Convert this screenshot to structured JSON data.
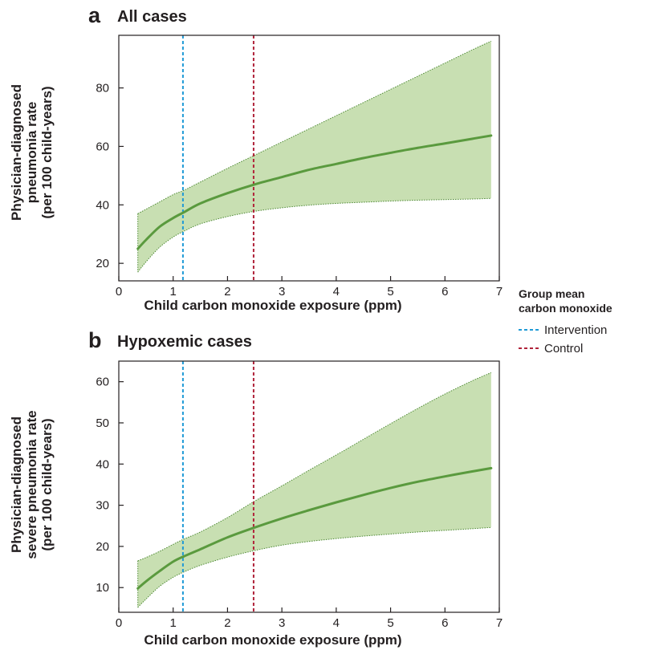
{
  "legend": {
    "title_line1": "Group mean",
    "title_line2": "carbon monoxide",
    "items": [
      {
        "label": "Intervention",
        "color": "#1f9ad6"
      },
      {
        "label": "Control",
        "color": "#b0233a"
      }
    ]
  },
  "colors": {
    "band": "#c8dfb2",
    "line": "#5a9a3e",
    "band_edge": "#4f8a35",
    "axis": "#231f20"
  },
  "chart_data": [
    {
      "type": "line",
      "panel_letter": "a",
      "title": "All cases",
      "xlabel": "Child carbon monoxide exposure (ppm)",
      "ylabel_lines": [
        "Physician-diagnosed",
        "pneumonia rate",
        "(per 100 child-years)"
      ],
      "xlim": [
        0,
        7
      ],
      "ylim": [
        14,
        98
      ],
      "x_ticks": [
        0,
        1,
        2,
        3,
        4,
        5,
        6,
        7
      ],
      "y_ticks": [
        20,
        40,
        60,
        80
      ],
      "x": [
        0.35,
        0.5,
        0.75,
        1.0,
        1.2,
        1.5,
        2.0,
        2.5,
        3.0,
        3.5,
        4.0,
        4.5,
        5.0,
        5.5,
        6.0,
        6.5,
        6.85
      ],
      "series": [
        {
          "role": "estimate",
          "values": [
            25,
            28,
            32.5,
            35.5,
            37.5,
            40.5,
            44,
            47,
            49.5,
            52,
            54,
            56,
            57.8,
            59.5,
            61,
            62.6,
            63.7
          ]
        },
        {
          "role": "upper",
          "values": [
            37,
            38.5,
            41,
            43.5,
            45,
            47.8,
            52.5,
            57,
            61.5,
            66,
            70.5,
            75,
            79.5,
            84,
            88.5,
            93,
            96
          ]
        },
        {
          "role": "lower",
          "values": [
            17,
            20.5,
            25.5,
            29,
            31,
            33.5,
            36,
            37.8,
            39,
            39.9,
            40.5,
            40.9,
            41.3,
            41.6,
            41.8,
            42,
            42.2
          ]
        }
      ],
      "vlines": [
        {
          "group": "Intervention",
          "x": 1.18
        },
        {
          "group": "Control",
          "x": 2.48
        }
      ]
    },
    {
      "type": "line",
      "panel_letter": "b",
      "title": "Hypoxemic cases",
      "xlabel": "Child carbon monoxide exposure (ppm)",
      "ylabel_lines": [
        "Physician-diagnosed",
        "severe pneumonia rate",
        "(per 100 child-years)"
      ],
      "xlim": [
        0,
        7
      ],
      "ylim": [
        4,
        65
      ],
      "x_ticks": [
        0,
        1,
        2,
        3,
        4,
        5,
        6,
        7
      ],
      "y_ticks": [
        10,
        20,
        30,
        40,
        50,
        60
      ],
      "x": [
        0.35,
        0.5,
        0.75,
        1.0,
        1.2,
        1.5,
        2.0,
        2.5,
        3.0,
        3.5,
        4.0,
        4.5,
        5.0,
        5.5,
        6.0,
        6.5,
        6.85
      ],
      "series": [
        {
          "role": "estimate",
          "values": [
            9.8,
            11.5,
            14,
            16.3,
            17.6,
            19.3,
            22.2,
            24.6,
            26.8,
            28.8,
            30.7,
            32.5,
            34.2,
            35.7,
            37,
            38.2,
            39
          ]
        },
        {
          "role": "upper",
          "values": [
            16.5,
            17.3,
            18.8,
            20.5,
            21.8,
            23.5,
            27,
            31,
            34.7,
            38.5,
            42.2,
            46,
            49.8,
            53.5,
            57,
            60.2,
            62.2
          ]
        },
        {
          "role": "lower",
          "values": [
            5.2,
            7.2,
            10.3,
            12.5,
            13.8,
            15.4,
            17.4,
            19,
            20.3,
            21.2,
            21.9,
            22.5,
            23,
            23.5,
            23.9,
            24.3,
            24.6
          ]
        }
      ],
      "vlines": [
        {
          "group": "Intervention",
          "x": 1.18
        },
        {
          "group": "Control",
          "x": 2.48
        }
      ]
    }
  ]
}
